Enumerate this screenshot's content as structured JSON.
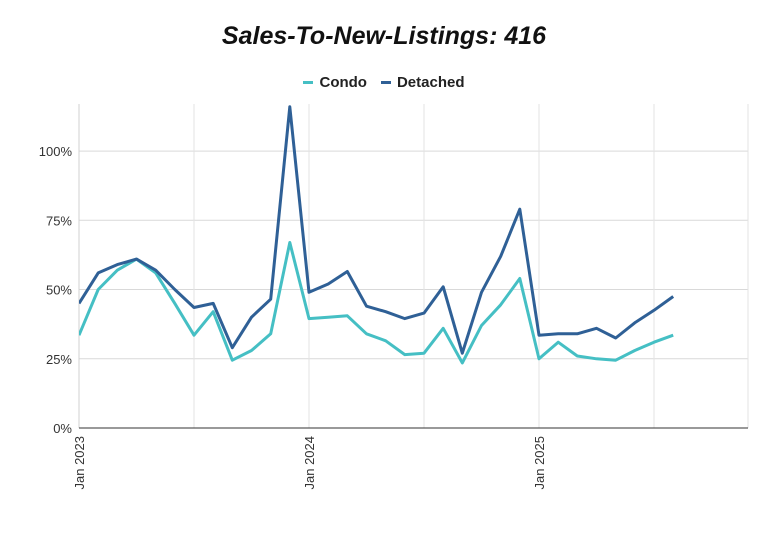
{
  "chart_data": {
    "type": "line",
    "title": "Sales-To-New-Listings: 416",
    "xlabel": "",
    "ylabel": "",
    "ylim": [
      0,
      117
    ],
    "yticks": [
      0,
      25,
      50,
      75,
      100
    ],
    "ytick_labels": [
      "0%",
      "25%",
      "50%",
      "75%",
      "100%"
    ],
    "xtick_labels": [
      "Jan 2023",
      "Jan 2024",
      "Jan 2025"
    ],
    "x_months_range": [
      0,
      35
    ],
    "xtick_months": [
      0,
      12,
      24
    ],
    "xgrid_months": [
      0,
      6,
      12,
      18,
      24,
      30
    ],
    "grid": true,
    "legend_position": "top",
    "series": [
      {
        "name": "Condo",
        "color": "#45BFC4",
        "values": [
          33.5,
          50,
          57,
          61,
          56,
          45,
          33.5,
          42,
          24.5,
          28,
          34,
          67,
          39.5,
          40,
          40.5,
          34,
          31.5,
          26.5,
          27,
          36,
          23.5,
          37,
          44.5,
          54,
          25,
          31,
          26,
          25,
          24.5,
          28,
          31,
          33.5
        ]
      },
      {
        "name": "Detached",
        "color": "#2F6096",
        "values": [
          45,
          56,
          59,
          61,
          57,
          50,
          43.5,
          45,
          29,
          40,
          46.5,
          116,
          49,
          52,
          56.5,
          44,
          42,
          39.5,
          41.5,
          51,
          27,
          49,
          62,
          79,
          33.5,
          34,
          34,
          36,
          32.5,
          38,
          42.5,
          47.5
        ]
      }
    ]
  }
}
